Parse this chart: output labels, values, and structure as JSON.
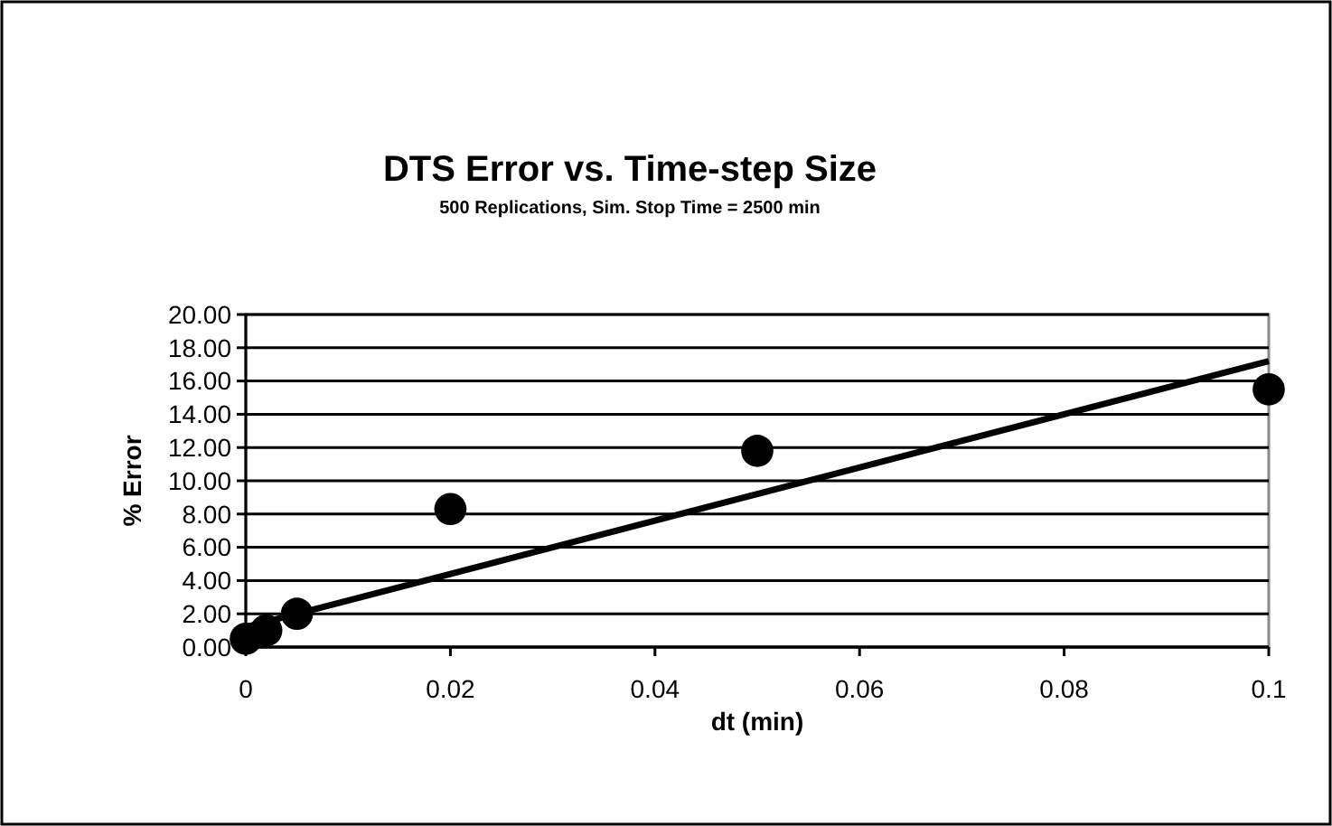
{
  "chart_data": {
    "type": "scatter",
    "title": "DTS Error vs. Time-step Size",
    "subtitle": "500 Replications, Sim. Stop Time = 2500 min",
    "xlabel": "dt (min)",
    "ylabel": "% Error",
    "series": [
      {
        "color": "#000000",
        "marker": "circle",
        "x": [
          0,
          0.002,
          0.005,
          0.02,
          0.05,
          0.1
        ],
        "values": [
          0.5,
          1.0,
          2.0,
          8.3,
          11.8,
          15.5
        ]
      },
      {
        "type": "line",
        "color": "#000000",
        "x": [
          0,
          0.1
        ],
        "values": [
          1.2,
          17.2
        ]
      }
    ],
    "xlim": [
      0,
      0.1
    ],
    "xticks": [
      0,
      0.02,
      0.04,
      0.06,
      0.08,
      0.1
    ],
    "ylim": [
      0,
      20
    ],
    "yticks": [
      {
        "value": 0,
        "label": "0.00"
      },
      {
        "value": 2,
        "label": "2.00"
      },
      {
        "value": 4,
        "label": "4.00"
      },
      {
        "value": 6,
        "label": "6.00"
      },
      {
        "value": 8,
        "label": "8.00"
      },
      {
        "value": 10,
        "label": "10.00"
      },
      {
        "value": 12,
        "label": "12.00"
      },
      {
        "value": 14,
        "label": "14.00"
      },
      {
        "value": 16,
        "label": "16.00"
      },
      {
        "value": 18,
        "label": "18.00"
      },
      {
        "value": 20,
        "label": "20.00"
      }
    ],
    "grid": "y"
  }
}
